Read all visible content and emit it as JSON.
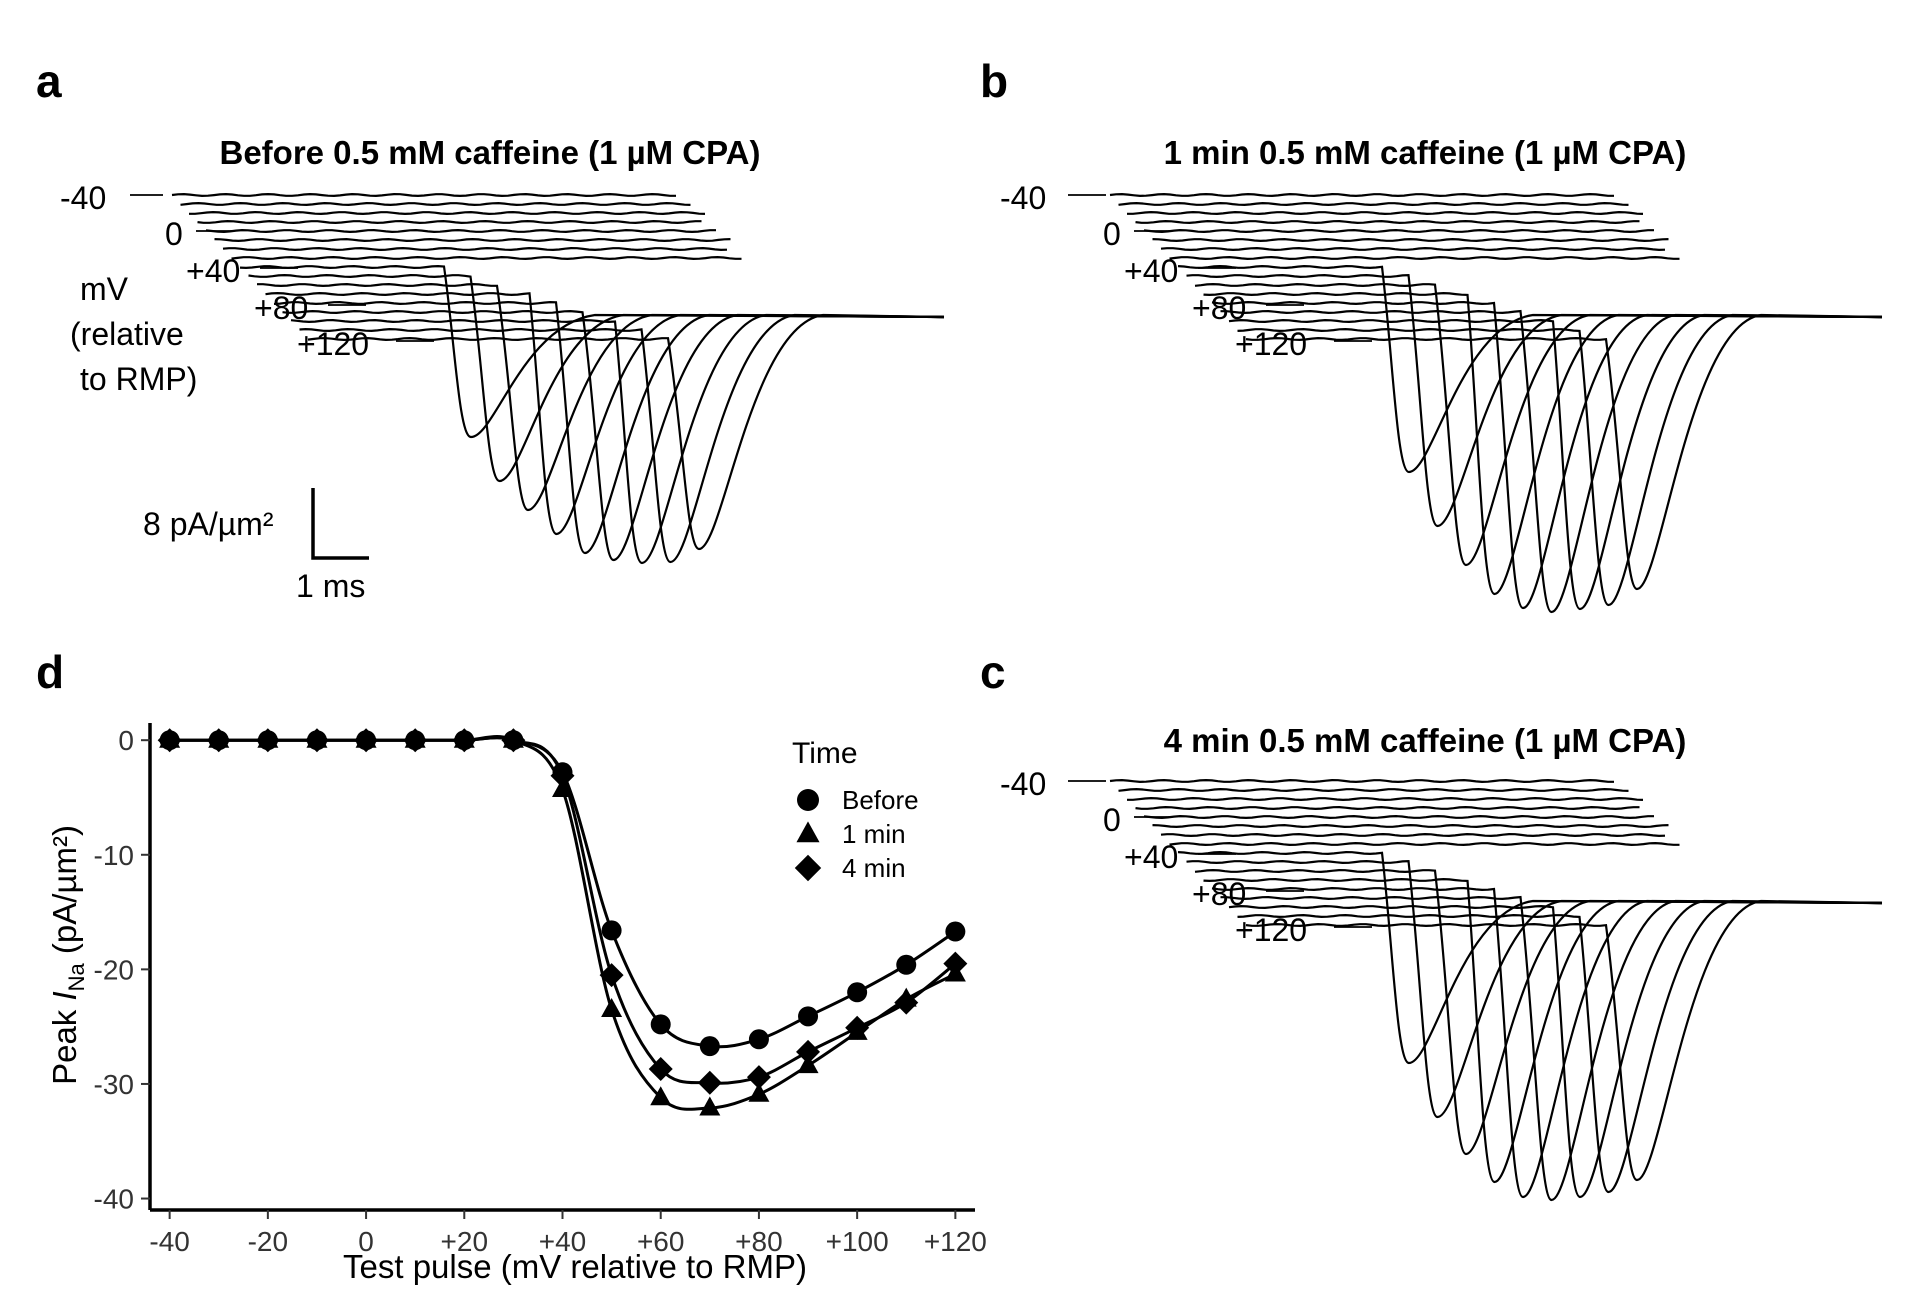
{
  "panels": {
    "a": {
      "label": "a",
      "title": "Before 0.5 mM caffeine (1 µM CPA)"
    },
    "b": {
      "label": "b",
      "title": "1 min 0.5 mM caffeine (1 µM CPA)"
    },
    "c": {
      "label": "c",
      "title": "4 min 0.5 mM caffeine (1 µM CPA)"
    },
    "d": {
      "label": "d"
    }
  },
  "voltage_labels": [
    "-40",
    "0",
    "+40",
    "+80",
    "+120"
  ],
  "unit_label": [
    "mV",
    "(relative",
    "to RMP)"
  ],
  "scale_bar": {
    "current": "8 pA/µm²",
    "time": "1 ms"
  },
  "chart_data": {
    "type": "scatter",
    "xlabel": "Test pulse (mV relative to RMP)",
    "ylabel_prefix": "Peak ",
    "ylabel_italic": "I",
    "ylabel_sub": "Na",
    "ylabel_suffix": " (pA/µm²)",
    "x_ticks": [
      "-40",
      "-20",
      "0",
      "+20",
      "+40",
      "+60",
      "+80",
      "+100",
      "+120"
    ],
    "y_ticks": [
      "0",
      "-10",
      "-20",
      "-30",
      "-40"
    ],
    "xlim": [
      -44,
      124
    ],
    "ylim": [
      -41,
      1.5
    ],
    "legend_title": "Time",
    "legend_position": "top-right",
    "x": [
      -40,
      -30,
      -20,
      -10,
      0,
      10,
      20,
      30,
      40,
      50,
      60,
      70,
      80,
      90,
      100,
      110,
      120
    ],
    "series": [
      {
        "name": "Before",
        "marker": "circle",
        "values": [
          0,
          0,
          0,
          0,
          0,
          0,
          0,
          0,
          -2.8,
          -16.6,
          -24.8,
          -26.7,
          -26.1,
          -24.1,
          -22.0,
          -19.6,
          -16.7
        ]
      },
      {
        "name": "1 min",
        "marker": "triangle",
        "values": [
          0,
          0,
          0,
          0,
          0,
          0,
          0,
          0,
          -4.3,
          -23.5,
          -31.2,
          -32.1,
          -30.9,
          -28.4,
          -25.5,
          -22.6,
          -20.4
        ]
      },
      {
        "name": "4 min",
        "marker": "diamond",
        "values": [
          0,
          0,
          0,
          0,
          0,
          0,
          0,
          0,
          -3.1,
          -20.5,
          -28.7,
          -29.9,
          -29.4,
          -27.2,
          -25.1,
          -22.9,
          -19.5
        ]
      }
    ]
  }
}
